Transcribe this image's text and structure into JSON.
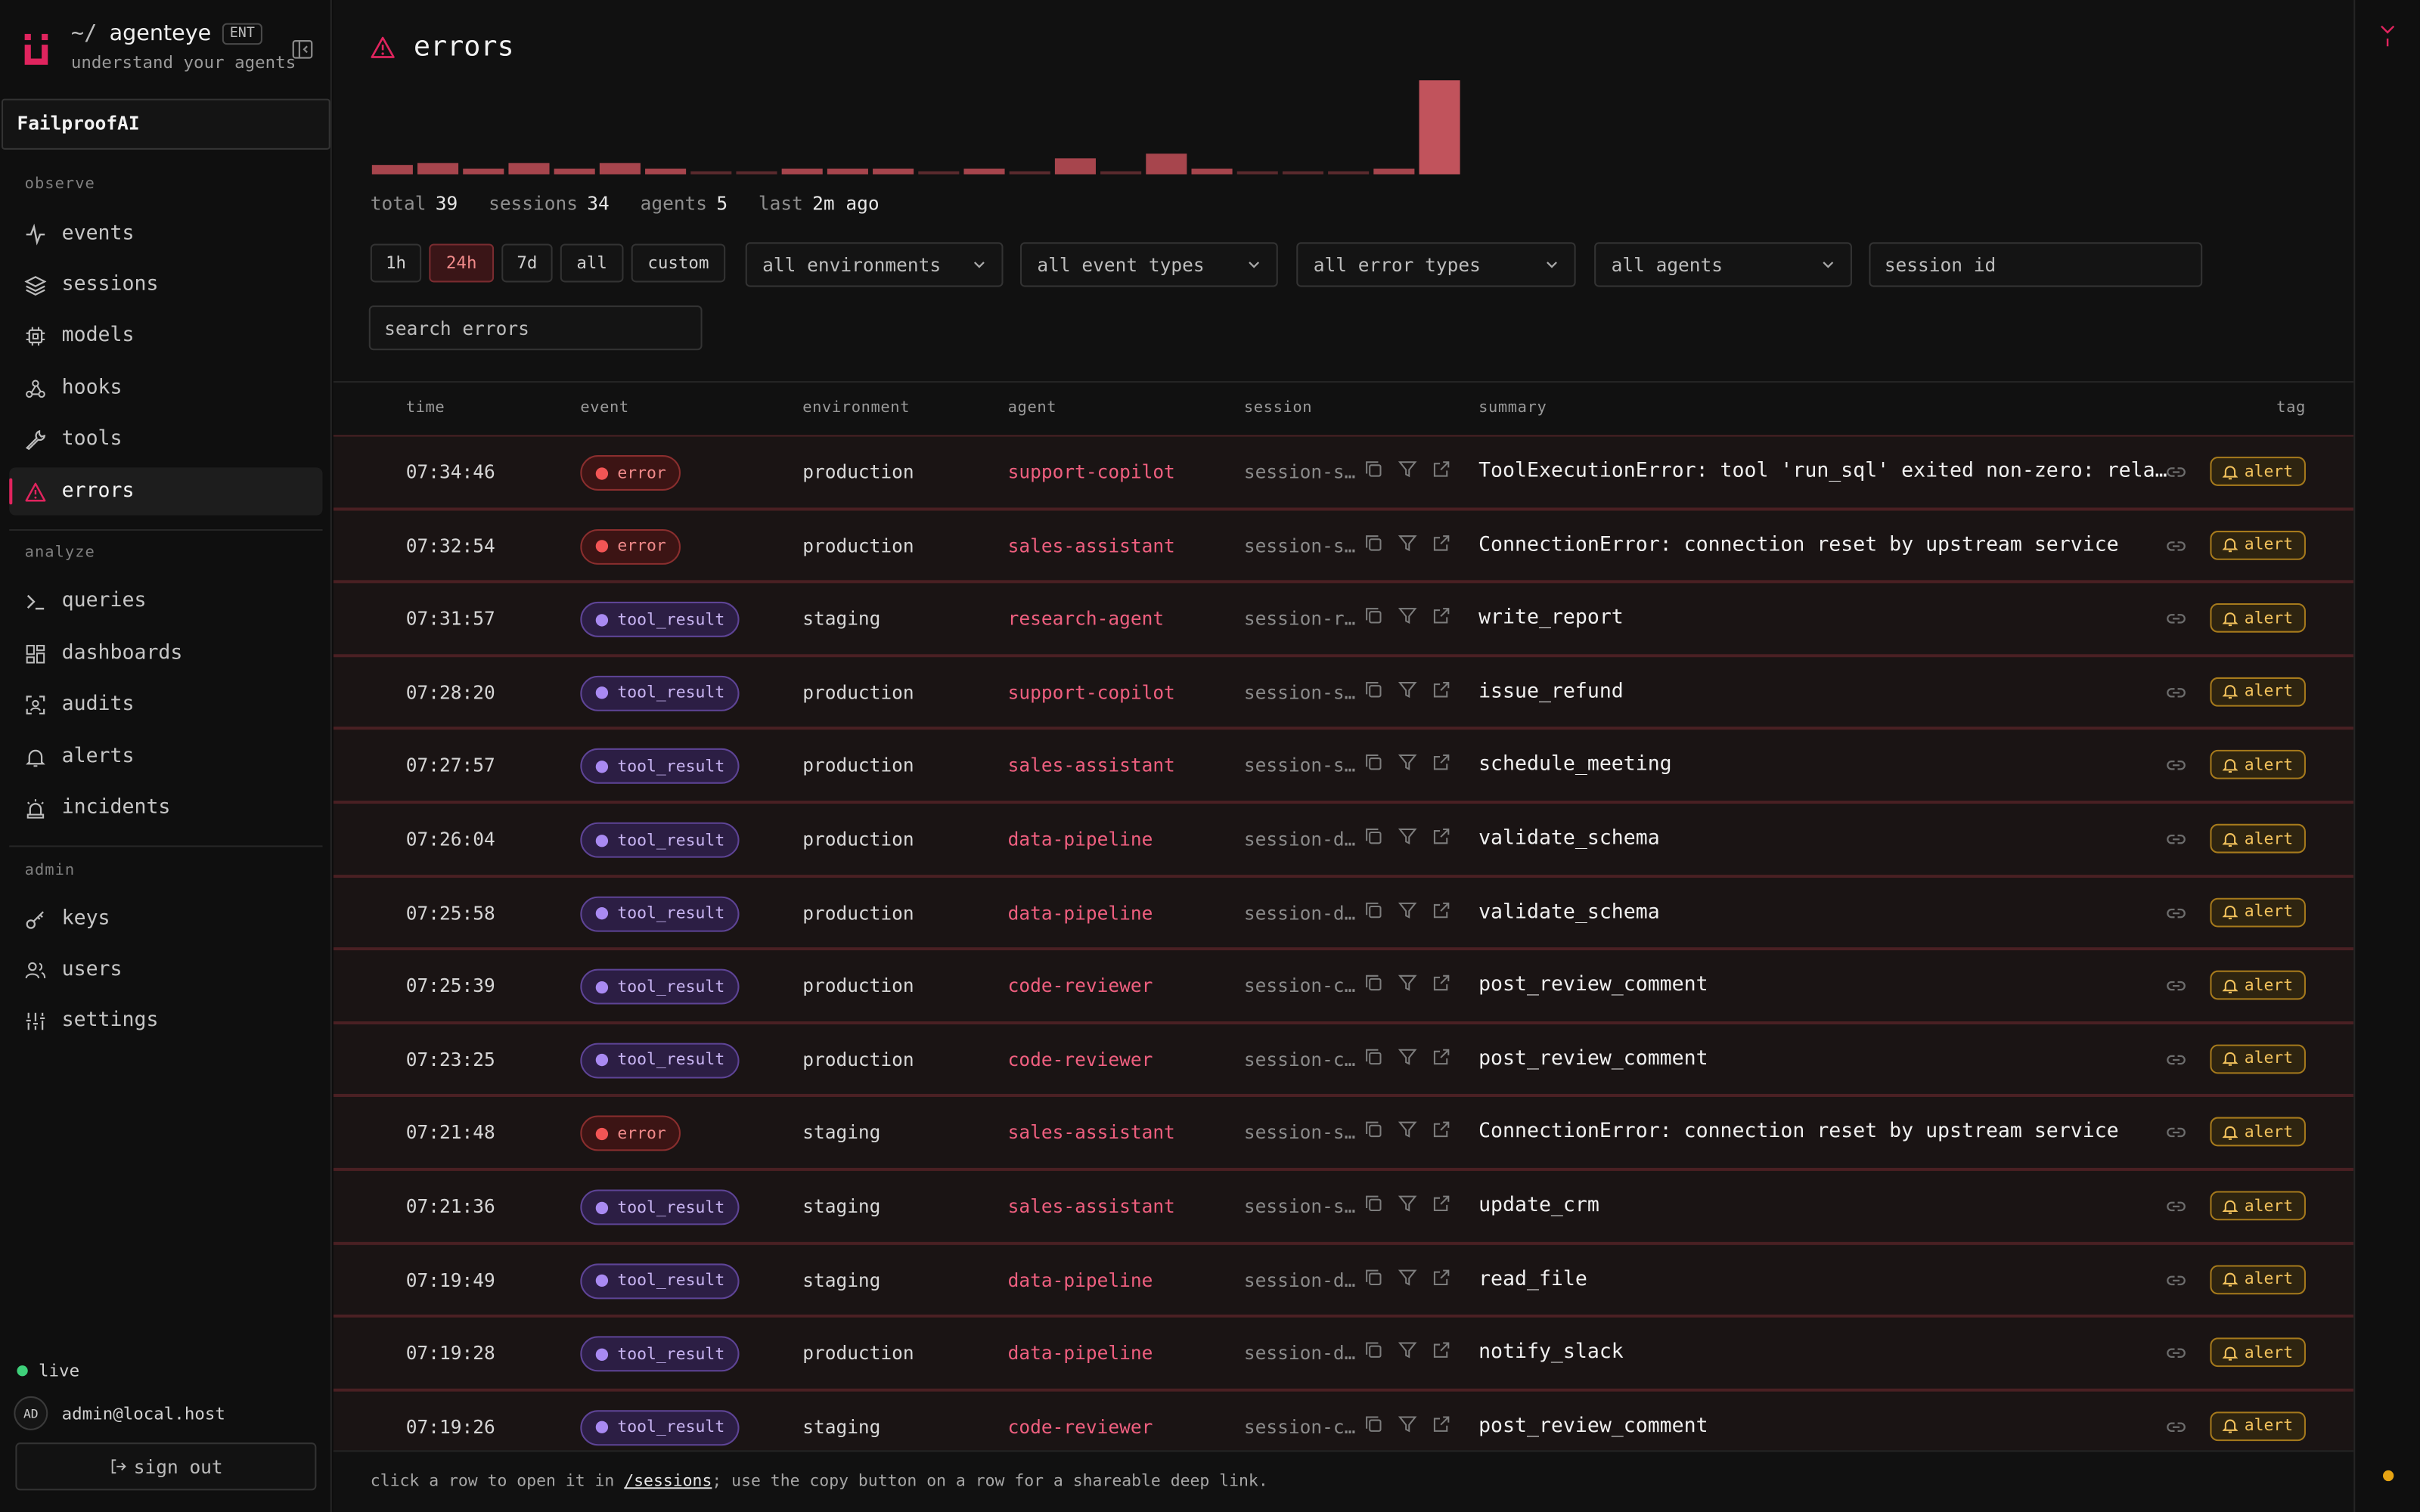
{
  "app": {
    "tilde": "~/",
    "name": "agenteye",
    "edition": "ENT",
    "tagline": "understand your agents",
    "org": "FailproofAI"
  },
  "sidebar": {
    "sections": {
      "observe": "observe",
      "analyze": "analyze",
      "admin": "admin"
    },
    "items": [
      {
        "label": "events",
        "icon": "activity-icon"
      },
      {
        "label": "sessions",
        "icon": "layers-icon"
      },
      {
        "label": "models",
        "icon": "cpu-icon"
      },
      {
        "label": "hooks",
        "icon": "webhook-icon"
      },
      {
        "label": "tools",
        "icon": "wrench-icon"
      },
      {
        "label": "errors",
        "icon": "warning-icon",
        "active": true
      },
      {
        "label": "queries",
        "icon": "terminal-icon"
      },
      {
        "label": "dashboards",
        "icon": "grid-icon"
      },
      {
        "label": "audits",
        "icon": "scan-icon"
      },
      {
        "label": "alerts",
        "icon": "bell-icon"
      },
      {
        "label": "incidents",
        "icon": "siren-icon"
      },
      {
        "label": "keys",
        "icon": "key-icon"
      },
      {
        "label": "users",
        "icon": "users-icon"
      },
      {
        "label": "settings",
        "icon": "sliders-icon"
      }
    ],
    "live": "live",
    "user_initials": "AD",
    "user_email": "admin@local.host",
    "signout": "sign out"
  },
  "page": {
    "title": "errors",
    "stats": [
      {
        "k": "total",
        "v": "39"
      },
      {
        "k": "sessions",
        "v": "34"
      },
      {
        "k": "agents",
        "v": "5"
      },
      {
        "k": "last",
        "v": "2m ago"
      }
    ],
    "ranges": [
      "1h",
      "24h",
      "7d",
      "all",
      "custom"
    ],
    "active_range": "24h",
    "filters": {
      "environment": "all environments",
      "event_type": "all event types",
      "error_type": "all error types",
      "agent": "all agents",
      "session_placeholder": "session id",
      "search_placeholder": "search errors"
    },
    "columns": {
      "time": "time",
      "event": "event",
      "environment": "environment",
      "agent": "agent",
      "session": "session",
      "summary": "summary",
      "tag": "tag"
    },
    "footer": {
      "pre": "click a row to open it in ",
      "link": "/sessions",
      "post": "; use the copy button on a row for a shareable deep link."
    }
  },
  "histogram": [
    0.1,
    0.12,
    0.06,
    0.12,
    0.06,
    0.12,
    0.06,
    0.03,
    0.03,
    0.06,
    0.06,
    0.06,
    0.03,
    0.06,
    0.03,
    0.17,
    0.03,
    0.22,
    0.06,
    0.03,
    0.03,
    0.03,
    0.06,
    1.0
  ],
  "rows": [
    {
      "time": "07:34:46",
      "event": "error",
      "env": "production",
      "agent": "support-copilot",
      "session": "session-s…",
      "summary": "ToolExecutionError: tool 'run_sql' exited non-zero: relat…",
      "tag": "alert"
    },
    {
      "time": "07:32:54",
      "event": "error",
      "env": "production",
      "agent": "sales-assistant",
      "session": "session-s…",
      "summary": "ConnectionError: connection reset by upstream service",
      "tag": "alert"
    },
    {
      "time": "07:31:57",
      "event": "tool_result",
      "env": "staging",
      "agent": "research-agent",
      "session": "session-r…",
      "summary": "write_report",
      "tag": "alert"
    },
    {
      "time": "07:28:20",
      "event": "tool_result",
      "env": "production",
      "agent": "support-copilot",
      "session": "session-s…",
      "summary": "issue_refund",
      "tag": "alert"
    },
    {
      "time": "07:27:57",
      "event": "tool_result",
      "env": "production",
      "agent": "sales-assistant",
      "session": "session-s…",
      "summary": "schedule_meeting",
      "tag": "alert"
    },
    {
      "time": "07:26:04",
      "event": "tool_result",
      "env": "production",
      "agent": "data-pipeline",
      "session": "session-d…",
      "summary": "validate_schema",
      "tag": "alert"
    },
    {
      "time": "07:25:58",
      "event": "tool_result",
      "env": "production",
      "agent": "data-pipeline",
      "session": "session-d…",
      "summary": "validate_schema",
      "tag": "alert"
    },
    {
      "time": "07:25:39",
      "event": "tool_result",
      "env": "production",
      "agent": "code-reviewer",
      "session": "session-c…",
      "summary": "post_review_comment",
      "tag": "alert"
    },
    {
      "time": "07:23:25",
      "event": "tool_result",
      "env": "production",
      "agent": "code-reviewer",
      "session": "session-c…",
      "summary": "post_review_comment",
      "tag": "alert"
    },
    {
      "time": "07:21:48",
      "event": "error",
      "env": "staging",
      "agent": "sales-assistant",
      "session": "session-s…",
      "summary": "ConnectionError: connection reset by upstream service",
      "tag": "alert"
    },
    {
      "time": "07:21:36",
      "event": "tool_result",
      "env": "staging",
      "agent": "sales-assistant",
      "session": "session-s…",
      "summary": "update_crm",
      "tag": "alert"
    },
    {
      "time": "07:19:49",
      "event": "tool_result",
      "env": "staging",
      "agent": "data-pipeline",
      "session": "session-d…",
      "summary": "read_file",
      "tag": "alert"
    },
    {
      "time": "07:19:28",
      "event": "tool_result",
      "env": "production",
      "agent": "data-pipeline",
      "session": "session-d…",
      "summary": "notify_slack",
      "tag": "alert"
    },
    {
      "time": "07:19:26",
      "event": "tool_result",
      "env": "staging",
      "agent": "code-reviewer",
      "session": "session-c…",
      "summary": "post_review_comment",
      "tag": "alert"
    }
  ],
  "colors": {
    "accent": "#e0245e",
    "error": "#f25555",
    "tool_result": "#a98af2",
    "alert": "#f2c25c",
    "bar": "#b94d56",
    "live": "#3ed07a"
  }
}
